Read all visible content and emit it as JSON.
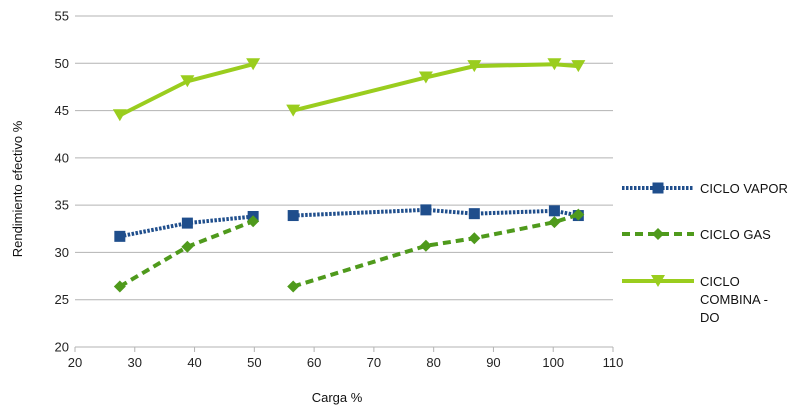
{
  "chart_data": {
    "type": "line",
    "xlabel": "Carga %",
    "ylabel": "Rendimiento efectivo %",
    "xlim": [
      20,
      110
    ],
    "ylim": [
      20,
      55
    ],
    "xticks": [
      20,
      30,
      40,
      50,
      60,
      70,
      80,
      90,
      100,
      110
    ],
    "yticks": [
      20,
      25,
      30,
      35,
      40,
      45,
      50,
      55
    ],
    "grid": "horizontal",
    "legend_position": "right",
    "series": [
      {
        "name": "CICLO VAPOR",
        "color": "#1f4e8c",
        "line_style": "dotted",
        "marker": "square",
        "segments": [
          [
            [
              27.5,
              31.7
            ],
            [
              38.8,
              33.1
            ],
            [
              49.8,
              33.8
            ]
          ],
          [
            [
              56.5,
              33.9
            ],
            [
              78.7,
              34.5
            ],
            [
              86.8,
              34.1
            ],
            [
              100.2,
              34.4
            ],
            [
              104.2,
              33.9
            ]
          ]
        ]
      },
      {
        "name": "CICLO GAS",
        "color": "#4f9a1c",
        "line_style": "dashed",
        "marker": "diamond",
        "segments": [
          [
            [
              27.5,
              26.4
            ],
            [
              38.8,
              30.6
            ],
            [
              49.8,
              33.3
            ]
          ],
          [
            [
              56.5,
              26.4
            ],
            [
              78.7,
              30.7
            ],
            [
              86.8,
              31.5
            ],
            [
              100.2,
              33.2
            ],
            [
              104.2,
              34.0
            ]
          ]
        ]
      },
      {
        "name": "CICLO COMBINA-DO",
        "legend_lines": [
          "CICLO",
          "COMBINA -",
          "DO"
        ],
        "color": "#9acd1e",
        "line_style": "solid",
        "marker": "triangle-down",
        "segments": [
          [
            [
              27.5,
              44.5
            ],
            [
              38.8,
              48.1
            ],
            [
              49.8,
              49.9
            ]
          ],
          [
            [
              56.5,
              45.0
            ],
            [
              78.7,
              48.5
            ],
            [
              86.8,
              49.7
            ],
            [
              100.2,
              49.9
            ],
            [
              104.2,
              49.7
            ]
          ]
        ]
      }
    ]
  }
}
